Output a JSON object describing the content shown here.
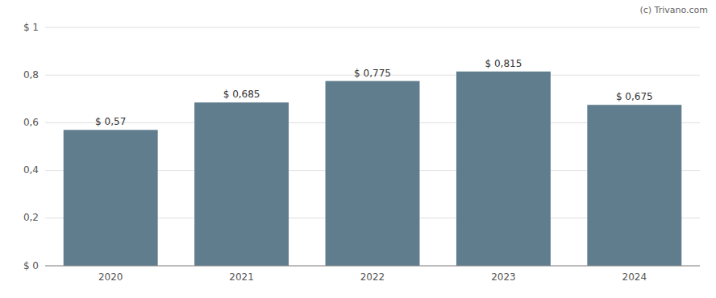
{
  "chart_data": {
    "type": "bar",
    "categories": [
      "2020",
      "2021",
      "2022",
      "2023",
      "2024"
    ],
    "values": [
      0.57,
      0.685,
      0.775,
      0.815,
      0.675
    ],
    "value_labels": [
      "$ 0,57",
      "$ 0,685",
      "$ 0,775",
      "$ 0,815",
      "$ 0,675"
    ],
    "data_labels": true,
    "color": "#5f7d8d",
    "ylim": [
      0,
      1.0
    ],
    "yticks": [
      {
        "value": 0,
        "label": "$ 0"
      },
      {
        "value": 0.2,
        "label": "0,2"
      },
      {
        "value": 0.4,
        "label": "0,4"
      },
      {
        "value": 0.6,
        "label": "0,6"
      },
      {
        "value": 0.8,
        "label": "0,8"
      },
      {
        "value": 1.0,
        "label": "$ 1"
      }
    ],
    "grid": true,
    "annotations": [
      "(c) Trivano.com"
    ]
  }
}
